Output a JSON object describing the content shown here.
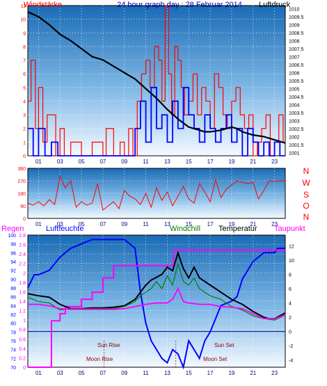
{
  "colors": {
    "panel_top": "#1e6fb8",
    "panel_bottom": "#f2f8ff",
    "wind": "#ff0000",
    "gust": "#0000ff",
    "pressure": "#000000",
    "humidity": "#0000ff",
    "windchill": "#008000",
    "temperature": "#000000",
    "dewpoint": "#ff00ff",
    "title": "#0000a0",
    "sun_moon": "#8b0000"
  },
  "header": {
    "left_label": "Windstärke",
    "title": "24 hour graph day : 28 Februar 2014",
    "right_label": "Luftdruck"
  },
  "compass": [
    "N",
    "W",
    "S",
    "O",
    "N"
  ],
  "legend": {
    "regen": "Regen",
    "luftfeuchte": "Luftfeuchte",
    "windchill": "Windchill",
    "temperatur": "Temperatur",
    "taupunkt": "Taupunkt"
  },
  "annotations": {
    "sun_rise": "Sun Rise",
    "moon_rise": "Moon Rise",
    "sun_set": "Sun Set",
    "moon_set": "Moon Set"
  },
  "chart_data": [
    {
      "type": "line",
      "id": "wind_pressure",
      "x_ticks": [
        "01",
        "03",
        "05",
        "07",
        "09",
        "11",
        "13",
        "15",
        "17",
        "19",
        "21",
        "23"
      ],
      "xlim": [
        0,
        24
      ],
      "left_ticks": [
        "0",
        "1",
        "2",
        "3",
        "4",
        "5",
        "6",
        "7",
        "8",
        "9",
        "10",
        "11"
      ],
      "ylim_left": [
        0,
        11
      ],
      "right_ticks": [
        "1001",
        "1001.5",
        "1002",
        "1002.5",
        "1003",
        "1003.5",
        "1004",
        "1004.5",
        "1005",
        "1005.5",
        "1006",
        "1006.5",
        "1007",
        "1007.5",
        "1008",
        "1008.5",
        "1009",
        "1009.5",
        "1010"
      ],
      "ylim_right": [
        1000.8,
        1010.2
      ],
      "series": [
        {
          "id": "wind",
          "axis": "left",
          "style": "step",
          "x": [
            0,
            0.3,
            0.7,
            1.0,
            1.4,
            1.8,
            2.6,
            3.0,
            3.4,
            4.0,
            5.0,
            5.5,
            6.0,
            7.0,
            7.3,
            8.0,
            8.6,
            9.0,
            9.4,
            9.8,
            10.2,
            10.6,
            11.0,
            11.4,
            11.8,
            12.2,
            12.5,
            12.8,
            13.1,
            13.4,
            13.7,
            14.0,
            14.3,
            14.6,
            15.0,
            15.4,
            15.8,
            16.2,
            16.6,
            17.0,
            17.4,
            17.8,
            18.2,
            18.6,
            19.0,
            19.4,
            19.8,
            20.2,
            20.6,
            21.0,
            21.4,
            21.8,
            22.2,
            22.6,
            23.0,
            23.4,
            23.8
          ],
          "y": [
            4,
            7,
            2,
            5,
            1,
            3,
            0,
            2,
            0,
            1,
            0,
            0,
            1,
            0,
            2,
            0,
            1,
            0,
            2,
            0,
            4,
            6,
            7,
            5,
            8,
            7,
            4,
            11,
            6,
            3,
            8,
            7,
            5,
            3,
            4,
            6,
            3,
            5,
            4,
            2,
            6,
            5,
            3,
            2,
            4,
            5,
            3,
            2,
            3,
            0,
            1,
            2,
            3,
            0,
            1,
            3,
            1
          ]
        },
        {
          "id": "gust",
          "axis": "left",
          "style": "step",
          "x": [
            0,
            0.5,
            1.0,
            1.6,
            2.2,
            2.8,
            3.4,
            4.5,
            6.0,
            7.5,
            9.0,
            10.0,
            10.5,
            11.0,
            11.5,
            12.0,
            12.5,
            13.0,
            13.5,
            14.0,
            14.5,
            15.0,
            15.5,
            16.0,
            16.5,
            17.0,
            17.5,
            18.0,
            18.5,
            19.0,
            19.5,
            20.0,
            20.5,
            21.0,
            21.5,
            22.0,
            22.5,
            23.0,
            23.5
          ],
          "y": [
            2,
            0,
            2,
            0,
            1,
            0,
            0,
            0,
            0,
            0,
            0,
            2,
            4,
            1,
            5,
            2,
            3,
            1,
            4,
            2,
            5,
            3,
            2,
            1,
            3,
            2,
            1,
            2,
            3,
            1,
            2,
            0,
            2,
            1,
            0,
            1,
            0,
            1,
            0
          ]
        },
        {
          "id": "pressure",
          "axis": "right",
          "style": "line",
          "x": [
            0,
            1,
            2,
            3,
            4,
            5,
            6,
            7,
            8,
            9,
            10,
            11,
            12,
            13,
            14,
            15,
            16,
            16.5,
            17,
            18,
            19,
            19.5,
            20,
            21,
            22,
            23,
            24
          ],
          "y": [
            1009.8,
            1009.5,
            1009.0,
            1008.4,
            1008.0,
            1007.5,
            1007.0,
            1006.8,
            1006.4,
            1006.0,
            1005.6,
            1005.0,
            1004.4,
            1003.7,
            1003.1,
            1002.6,
            1002.4,
            1002.3,
            1002.3,
            1002.4,
            1002.6,
            1002.5,
            1002.3,
            1002.1,
            1002.0,
            1001.8,
            1001.6
          ]
        }
      ]
    },
    {
      "type": "line",
      "id": "wind_direction",
      "x_ticks": [
        "01",
        "03",
        "05",
        "07",
        "09",
        "11",
        "13",
        "15",
        "17",
        "19",
        "21",
        "23"
      ],
      "xlim": [
        0,
        24
      ],
      "left_ticks": [
        "0",
        "90",
        "180",
        "270",
        "360"
      ],
      "ylim": [
        0,
        360
      ],
      "series": [
        {
          "id": "direction",
          "style": "line",
          "x": [
            0,
            0.5,
            1,
            1.5,
            2,
            2.5,
            3,
            3.5,
            4,
            4.5,
            5,
            5.5,
            6,
            6.5,
            7,
            7.5,
            8,
            8.5,
            9,
            9.5,
            10,
            10.5,
            11,
            11.5,
            12,
            12.5,
            13,
            13.5,
            14,
            14.5,
            15,
            15.5,
            16,
            16.5,
            17,
            17.5,
            18,
            18.5,
            19,
            19.5,
            20,
            20.5,
            21,
            21.5,
            22,
            22.5,
            23,
            23.5,
            24
          ],
          "y": [
            110,
            95,
            120,
            90,
            135,
            100,
            300,
            220,
            270,
            80,
            120,
            95,
            110,
            250,
            60,
            90,
            120,
            70,
            200,
            160,
            140,
            100,
            180,
            80,
            220,
            130,
            190,
            90,
            160,
            230,
            140,
            110,
            250,
            190,
            120,
            280,
            150,
            210,
            240,
            270,
            260,
            250,
            260,
            140,
            200,
            270,
            265,
            270,
            270
          ]
        }
      ]
    },
    {
      "type": "line",
      "id": "humidity_temperature",
      "x_ticks": [
        "01",
        "03",
        "05",
        "07",
        "09",
        "11",
        "13",
        "15",
        "17",
        "19",
        "21",
        "23"
      ],
      "xlim": [
        0,
        24
      ],
      "humidity_ticks": [
        "70",
        "72",
        "74",
        "76",
        "78",
        "80",
        "82",
        "84",
        "86",
        "88",
        "90",
        "92",
        "94",
        "96",
        "98",
        "100"
      ],
      "ylim_humidity": [
        70,
        100
      ],
      "rain_ticks": [
        "0",
        "0.2",
        "0.4",
        "0.6",
        "0.8",
        "1",
        "1.2",
        "1.4",
        "1.6",
        "1.8",
        "2",
        "2.2",
        "2.4",
        "2.6",
        "2.8"
      ],
      "ylim_rain": [
        0,
        2.8
      ],
      "temp_ticks": [
        "-4",
        "-2",
        "0",
        "2",
        "4",
        "6",
        "8",
        "10",
        "12"
      ],
      "ylim_temp": [
        -5,
        13.5
      ],
      "series": [
        {
          "id": "humidity",
          "axis": "humidity",
          "style": "line",
          "x": [
            0,
            0.6,
            1,
            2,
            3,
            4,
            5,
            6,
            7,
            8,
            9,
            10,
            10.5,
            11,
            11.5,
            12,
            12.5,
            13,
            13.5,
            14,
            14.5,
            15,
            15.5,
            16,
            16.5,
            17,
            18,
            19,
            19.5,
            20,
            20.5,
            21,
            22,
            23,
            23.3,
            24
          ],
          "y": [
            88,
            91,
            91,
            92,
            95,
            97,
            98,
            99,
            99,
            99,
            99,
            97,
            87,
            80,
            76,
            74,
            72,
            71,
            74,
            73,
            70,
            76,
            74,
            72,
            76,
            78,
            84,
            85,
            86,
            90,
            92,
            94,
            96,
            96,
            97,
            97
          ]
        },
        {
          "id": "dewpoint",
          "axis": "temp",
          "style": "step",
          "x": [
            0,
            2.0,
            2.2,
            3.0,
            3.5,
            5.0,
            6.0,
            7.0,
            8.0,
            13.0,
            13.6,
            24
          ],
          "y": [
            -5,
            -5,
            1.5,
            2.5,
            3.5,
            4.5,
            5.5,
            7.5,
            9.2,
            9.2,
            11.4,
            11.4
          ]
        },
        {
          "id": "temperature",
          "axis": "temp",
          "style": "line",
          "x": [
            0,
            1,
            2,
            3,
            4,
            5,
            6,
            7,
            8,
            9,
            10,
            10.5,
            11,
            11.5,
            12,
            12.5,
            13,
            13.5,
            14,
            14.5,
            15,
            15.5,
            16,
            17,
            18,
            19,
            20,
            21,
            22,
            22.5,
            23,
            24
          ],
          "y": [
            5.3,
            5.0,
            4.8,
            3.8,
            3.2,
            3.2,
            3.3,
            3.3,
            3.4,
            3.6,
            4.5,
            5.5,
            6.5,
            7.2,
            7.6,
            8.0,
            9.0,
            8.5,
            11.0,
            8.8,
            7.5,
            9.0,
            7.5,
            6.5,
            5.5,
            4.5,
            3.8,
            2.8,
            2.0,
            1.8,
            1.8,
            2.6
          ]
        },
        {
          "id": "windchill",
          "axis": "temp",
          "style": "line",
          "x": [
            0,
            1,
            2,
            3,
            4,
            5,
            6,
            7,
            8,
            9,
            10,
            10.5,
            11,
            11.5,
            12,
            12.5,
            13,
            13.5,
            14,
            14.5,
            15,
            15.5,
            16,
            17,
            18,
            19,
            20,
            21,
            22,
            23,
            24
          ],
          "y": [
            4.8,
            4.2,
            4.0,
            3.0,
            3.2,
            3.2,
            3.2,
            3.2,
            3.2,
            3.5,
            4.2,
            5.0,
            5.5,
            6.0,
            7.0,
            6.0,
            7.8,
            6.5,
            9.5,
            7.0,
            6.5,
            7.5,
            6.0,
            5.0,
            4.5,
            3.5,
            3.0,
            2.2,
            1.8,
            1.6,
            2.3
          ]
        },
        {
          "id": "rain_dew_low",
          "axis": "temp",
          "style": "line",
          "x": [
            0,
            1,
            2,
            3,
            4,
            5,
            6,
            7,
            8,
            9,
            10,
            11,
            12,
            13,
            13.5,
            14,
            14.5,
            15,
            16,
            17,
            18,
            19,
            20,
            21,
            22,
            23,
            24
          ],
          "y": [
            3.8,
            3.8,
            3.6,
            3.2,
            3.1,
            3.1,
            3.1,
            3.1,
            3.1,
            3.2,
            3.5,
            3.8,
            4.0,
            4.0,
            4.5,
            6.0,
            4.2,
            4.0,
            3.8,
            3.8,
            3.5,
            3.4,
            3.2,
            2.5,
            1.8,
            1.8,
            2.3
          ]
        }
      ]
    }
  ]
}
